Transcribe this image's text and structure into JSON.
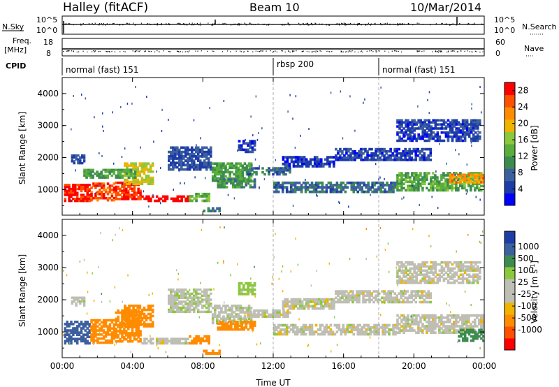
{
  "header": {
    "station": "Halley (fitACF)",
    "beam": "Beam 10",
    "date": "10/Mar/2014"
  },
  "strip_labels": {
    "nsky": "N.Sky",
    "nsearch": "N.Search",
    "nsearch_dots": "·······",
    "freq_line1": "Freq.",
    "freq_line2": "[MHz]",
    "nave": "Nave",
    "nave_dots": "····",
    "cpid": "CPID",
    "left_top_tick_a": "10^5",
    "left_top_tick_b": "10^0",
    "right_top_tick_a": "10^5",
    "right_top_tick_b": "10^0",
    "freq_tick_a": "18",
    "freq_tick_b": "8",
    "nave_tick_a": "60",
    "nave_tick_b": "0"
  },
  "cpid_segments": [
    {
      "label": "normal (fast) 151",
      "start_hour": 0,
      "end_hour": 12
    },
    {
      "label": "rbsp 200",
      "start_hour": 12,
      "end_hour": 18
    },
    {
      "label": "normal (fast) 151",
      "start_hour": 18,
      "end_hour": 24
    }
  ],
  "colors": {
    "power_scale": [
      "#0000ff",
      "#1e3ca8",
      "#3c5f9e",
      "#3c8c50",
      "#5aaf3c",
      "#8cc83c",
      "#f0b400",
      "#ff8c00",
      "#ff5000",
      "#ff0000"
    ],
    "velocity_scale": [
      "#ff0000",
      "#ff5000",
      "#ff8c00",
      "#f0b400",
      "#bebeb4",
      "#bebeb4",
      "#8cc83c",
      "#3c8c50",
      "#3c5f9e",
      "#1e3ca8"
    ],
    "velocity_near_zero": "#bebeb4"
  },
  "chart_data": [
    {
      "type": "heatmap",
      "name": "power-panel",
      "ylabel": "Slant Range [km]",
      "xlim_hours": [
        0,
        24
      ],
      "ylim": [
        200,
        4500
      ],
      "yticks": [
        1000,
        2000,
        3000,
        4000
      ],
      "colorbar": {
        "label": "Power [dB]",
        "range": [
          0,
          30
        ],
        "ticks": [
          4,
          8,
          12,
          16,
          20,
          24,
          28
        ]
      },
      "vertical_markers_hours": [
        12,
        18
      ],
      "echo_regions": [
        {
          "t0": 0.1,
          "t1": 1.6,
          "r0": 620,
          "r1": 1180,
          "level": 28
        },
        {
          "t0": 1.6,
          "t1": 3.0,
          "r0": 640,
          "r1": 1220,
          "level": 26
        },
        {
          "t0": 3.0,
          "t1": 4.5,
          "r0": 680,
          "r1": 1250,
          "level": 27
        },
        {
          "t0": 4.5,
          "t1": 7.2,
          "r0": 620,
          "r1": 820,
          "level": 30
        },
        {
          "t0": 7.2,
          "t1": 8.4,
          "r0": 620,
          "r1": 900,
          "level": 14
        },
        {
          "t0": 3.5,
          "t1": 5.2,
          "r0": 1150,
          "r1": 1850,
          "level": 18
        },
        {
          "t0": 1.2,
          "t1": 4.2,
          "r0": 1350,
          "r1": 1650,
          "level": 12
        },
        {
          "t0": 6.0,
          "t1": 8.5,
          "r0": 1600,
          "r1": 2350,
          "level": 6
        },
        {
          "t0": 8.5,
          "t1": 10.8,
          "r0": 1250,
          "r1": 1850,
          "level": 12
        },
        {
          "t0": 8.8,
          "t1": 11.0,
          "r0": 1050,
          "r1": 1350,
          "level": 11
        },
        {
          "t0": 10.0,
          "t1": 11.0,
          "r0": 2150,
          "r1": 2550,
          "level": 5
        },
        {
          "t0": 12.0,
          "t1": 19.0,
          "r0": 900,
          "r1": 1250,
          "level": 8
        },
        {
          "t0": 19.0,
          "t1": 24.0,
          "r0": 950,
          "r1": 1550,
          "level": 13
        },
        {
          "t0": 22.0,
          "t1": 24.0,
          "r0": 1200,
          "r1": 1500,
          "level": 22
        },
        {
          "t0": 12.5,
          "t1": 15.5,
          "r0": 1700,
          "r1": 2050,
          "level": 4
        },
        {
          "t0": 15.5,
          "t1": 21.0,
          "r0": 1900,
          "r1": 2300,
          "level": 5
        },
        {
          "t0": 19.0,
          "t1": 23.8,
          "r0": 2500,
          "r1": 3200,
          "level": 5
        },
        {
          "t0": 0.5,
          "t1": 1.3,
          "r0": 1800,
          "r1": 2100,
          "level": 6
        },
        {
          "t0": 10.5,
          "t1": 13.0,
          "r0": 1450,
          "r1": 1700,
          "level": 8
        },
        {
          "t0": 8.0,
          "t1": 9.0,
          "r0": 300,
          "r1": 450,
          "level": 10
        }
      ]
    },
    {
      "type": "heatmap",
      "name": "velocity-panel",
      "ylabel": "Slant Range [km]",
      "xlabel": "Time UT",
      "xlim_hours": [
        0,
        24
      ],
      "ylim": [
        200,
        4500
      ],
      "yticks": [
        1000,
        2000,
        3000,
        4000
      ],
      "xtick_labels": [
        "00:00",
        "04:00",
        "08:00",
        "12:00",
        "16:00",
        "20:00",
        "00:00"
      ],
      "xtick_hours": [
        0,
        4,
        8,
        12,
        16,
        20,
        24
      ],
      "colorbar": {
        "label": "Velocity [m s",
        "label_sup": "-1",
        "label_end": "]",
        "ticks": [
          "1000",
          "500",
          "100",
          "25",
          "-25",
          "-100",
          "-500",
          "-1000"
        ]
      },
      "vertical_markers_hours": [
        12,
        18
      ],
      "echo_regions": [
        {
          "t0": 0.1,
          "t1": 1.6,
          "r0": 620,
          "r1": 1350,
          "v": 600
        },
        {
          "t0": 1.6,
          "t1": 3.0,
          "r0": 640,
          "r1": 1400,
          "v": -150
        },
        {
          "t0": 3.0,
          "t1": 4.5,
          "r0": 680,
          "r1": 1700,
          "v": -300
        },
        {
          "t0": 4.5,
          "t1": 7.2,
          "r0": 620,
          "r1": 820,
          "v": 0
        },
        {
          "t0": 7.2,
          "t1": 8.4,
          "r0": 620,
          "r1": 900,
          "v": -300
        },
        {
          "t0": 3.5,
          "t1": 5.2,
          "r0": 1150,
          "r1": 1850,
          "v": -400
        },
        {
          "t0": 6.0,
          "t1": 8.5,
          "r0": 1600,
          "r1": 2350,
          "v": 10
        },
        {
          "t0": 8.5,
          "t1": 10.8,
          "r0": 1250,
          "r1": 1850,
          "v": 5
        },
        {
          "t0": 8.8,
          "t1": 11.0,
          "r0": 1050,
          "r1": 1350,
          "v": -200
        },
        {
          "t0": 10.0,
          "t1": 11.0,
          "r0": 2150,
          "r1": 2550,
          "v": 50
        },
        {
          "t0": 12.0,
          "t1": 19.0,
          "r0": 900,
          "r1": 1250,
          "v": 0
        },
        {
          "t0": 19.0,
          "t1": 24.0,
          "r0": 950,
          "r1": 1550,
          "v": 0
        },
        {
          "t0": 22.5,
          "t1": 24.0,
          "r0": 700,
          "r1": 1100,
          "v": 200
        },
        {
          "t0": 12.5,
          "t1": 15.5,
          "r0": 1700,
          "r1": 2050,
          "v": 0
        },
        {
          "t0": 15.5,
          "t1": 21.0,
          "r0": 1900,
          "r1": 2300,
          "v": 0
        },
        {
          "t0": 19.0,
          "t1": 23.8,
          "r0": 2500,
          "r1": 3200,
          "v": 0
        },
        {
          "t0": 0.5,
          "t1": 1.3,
          "r0": 1800,
          "r1": 2100,
          "v": 5
        },
        {
          "t0": 10.5,
          "t1": 13.0,
          "r0": 1450,
          "r1": 1700,
          "v": 0
        },
        {
          "t0": 8.0,
          "t1": 9.0,
          "r0": 300,
          "r1": 450,
          "v": -300
        }
      ]
    }
  ]
}
